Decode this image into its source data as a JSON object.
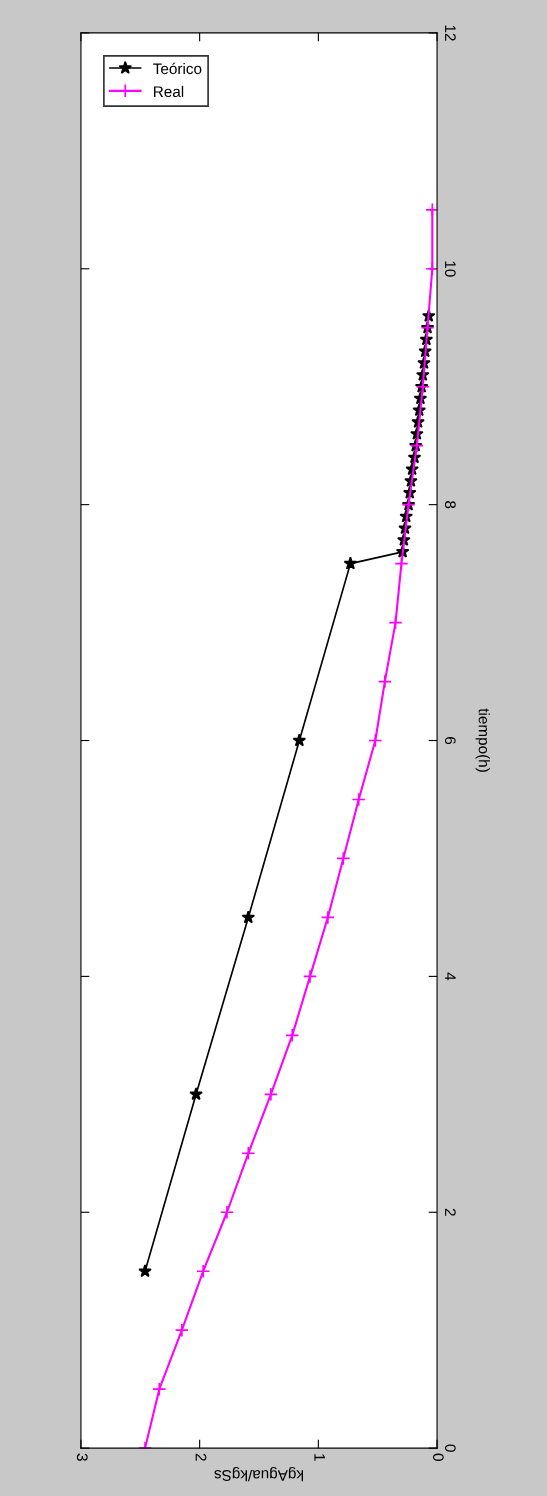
{
  "chart_data": {
    "type": "line",
    "xlabel": "kgAgua/kgSs",
    "ylabel": "tiempo(h)",
    "xlim": [
      3,
      0
    ],
    "ylim": [
      0,
      12
    ],
    "xticks": [
      3,
      2,
      1,
      0
    ],
    "yticks": [
      0,
      2,
      4,
      6,
      8,
      10,
      12
    ],
    "grid": false,
    "legend": "top left",
    "line_style": "solid",
    "series": [
      {
        "name": "Teórico",
        "color": "#000000",
        "marker": "star",
        "x": [
          2.46,
          2.03,
          1.59,
          1.16,
          0.73,
          0.29,
          0.28,
          0.27,
          0.26,
          0.24,
          0.23,
          0.22,
          0.21,
          0.19,
          0.18,
          0.17,
          0.16,
          0.15,
          0.14,
          0.13,
          0.12,
          0.11,
          0.1,
          0.09,
          0.08,
          0.07
        ],
        "values": [
          1.5,
          3,
          4.5,
          6,
          7.5,
          7.6,
          7.7,
          7.8,
          7.9,
          8.0,
          8.1,
          8.2,
          8.3,
          8.4,
          8.5,
          8.6,
          8.7,
          8.8,
          8.9,
          9.0,
          9.1,
          9.2,
          9.3,
          9.4,
          9.5,
          9.6
        ]
      },
      {
        "name": "Real",
        "color": "#ff00ff",
        "marker": "cross",
        "x": [
          2.46,
          2.34,
          2.15,
          1.97,
          1.77,
          1.59,
          1.4,
          1.22,
          1.07,
          0.92,
          0.79,
          0.66,
          0.52,
          0.44,
          0.35,
          0.3,
          0.24,
          0.17,
          0.12,
          0.08,
          0.04,
          0.04
        ],
        "values": [
          0,
          0.5,
          1,
          1.5,
          2,
          2.5,
          3,
          3.5,
          4,
          4.5,
          5,
          5.5,
          6,
          6.5,
          7,
          7.5,
          8,
          8.5,
          9,
          9.5,
          10,
          10.5
        ]
      }
    ]
  }
}
